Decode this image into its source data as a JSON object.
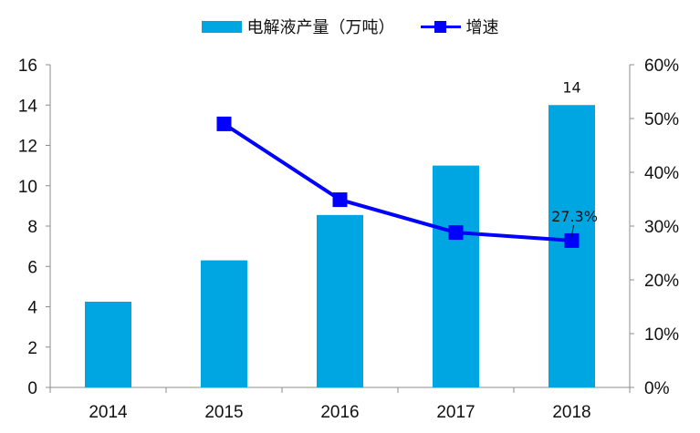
{
  "legend": {
    "bar_label": "电解液产量（万吨）",
    "line_label": "增速"
  },
  "colors": {
    "bar": "#00A6E2",
    "line": "#0000FF",
    "axis": "#8C8C8C"
  },
  "chart_data": {
    "type": "bar",
    "title": "",
    "categories": [
      "2014",
      "2015",
      "2016",
      "2017",
      "2018"
    ],
    "series": [
      {
        "name": "电解液产量（万吨）",
        "type": "bar",
        "axis": "left",
        "values": [
          4.25,
          6.3,
          8.55,
          11.0,
          14.0
        ]
      },
      {
        "name": "增速",
        "type": "line",
        "axis": "right",
        "values": [
          null,
          49.0,
          34.9,
          28.8,
          27.3
        ],
        "unit": "%"
      }
    ],
    "data_labels": [
      {
        "series": "电解液产量（万吨）",
        "category": "2018",
        "text": "14"
      },
      {
        "series": "增速",
        "category": "2018",
        "text": "27.3%"
      }
    ],
    "xlabel": "",
    "ylabel": "",
    "ylim": [
      0,
      16
    ],
    "yticks": [
      "0",
      "2",
      "4",
      "6",
      "8",
      "10",
      "12",
      "14",
      "16"
    ],
    "y2lim": [
      0,
      60
    ],
    "y2ticks": [
      "0%",
      "10%",
      "20%",
      "30%",
      "40%",
      "50%",
      "60%"
    ],
    "legend_position": "top",
    "grid": false
  }
}
